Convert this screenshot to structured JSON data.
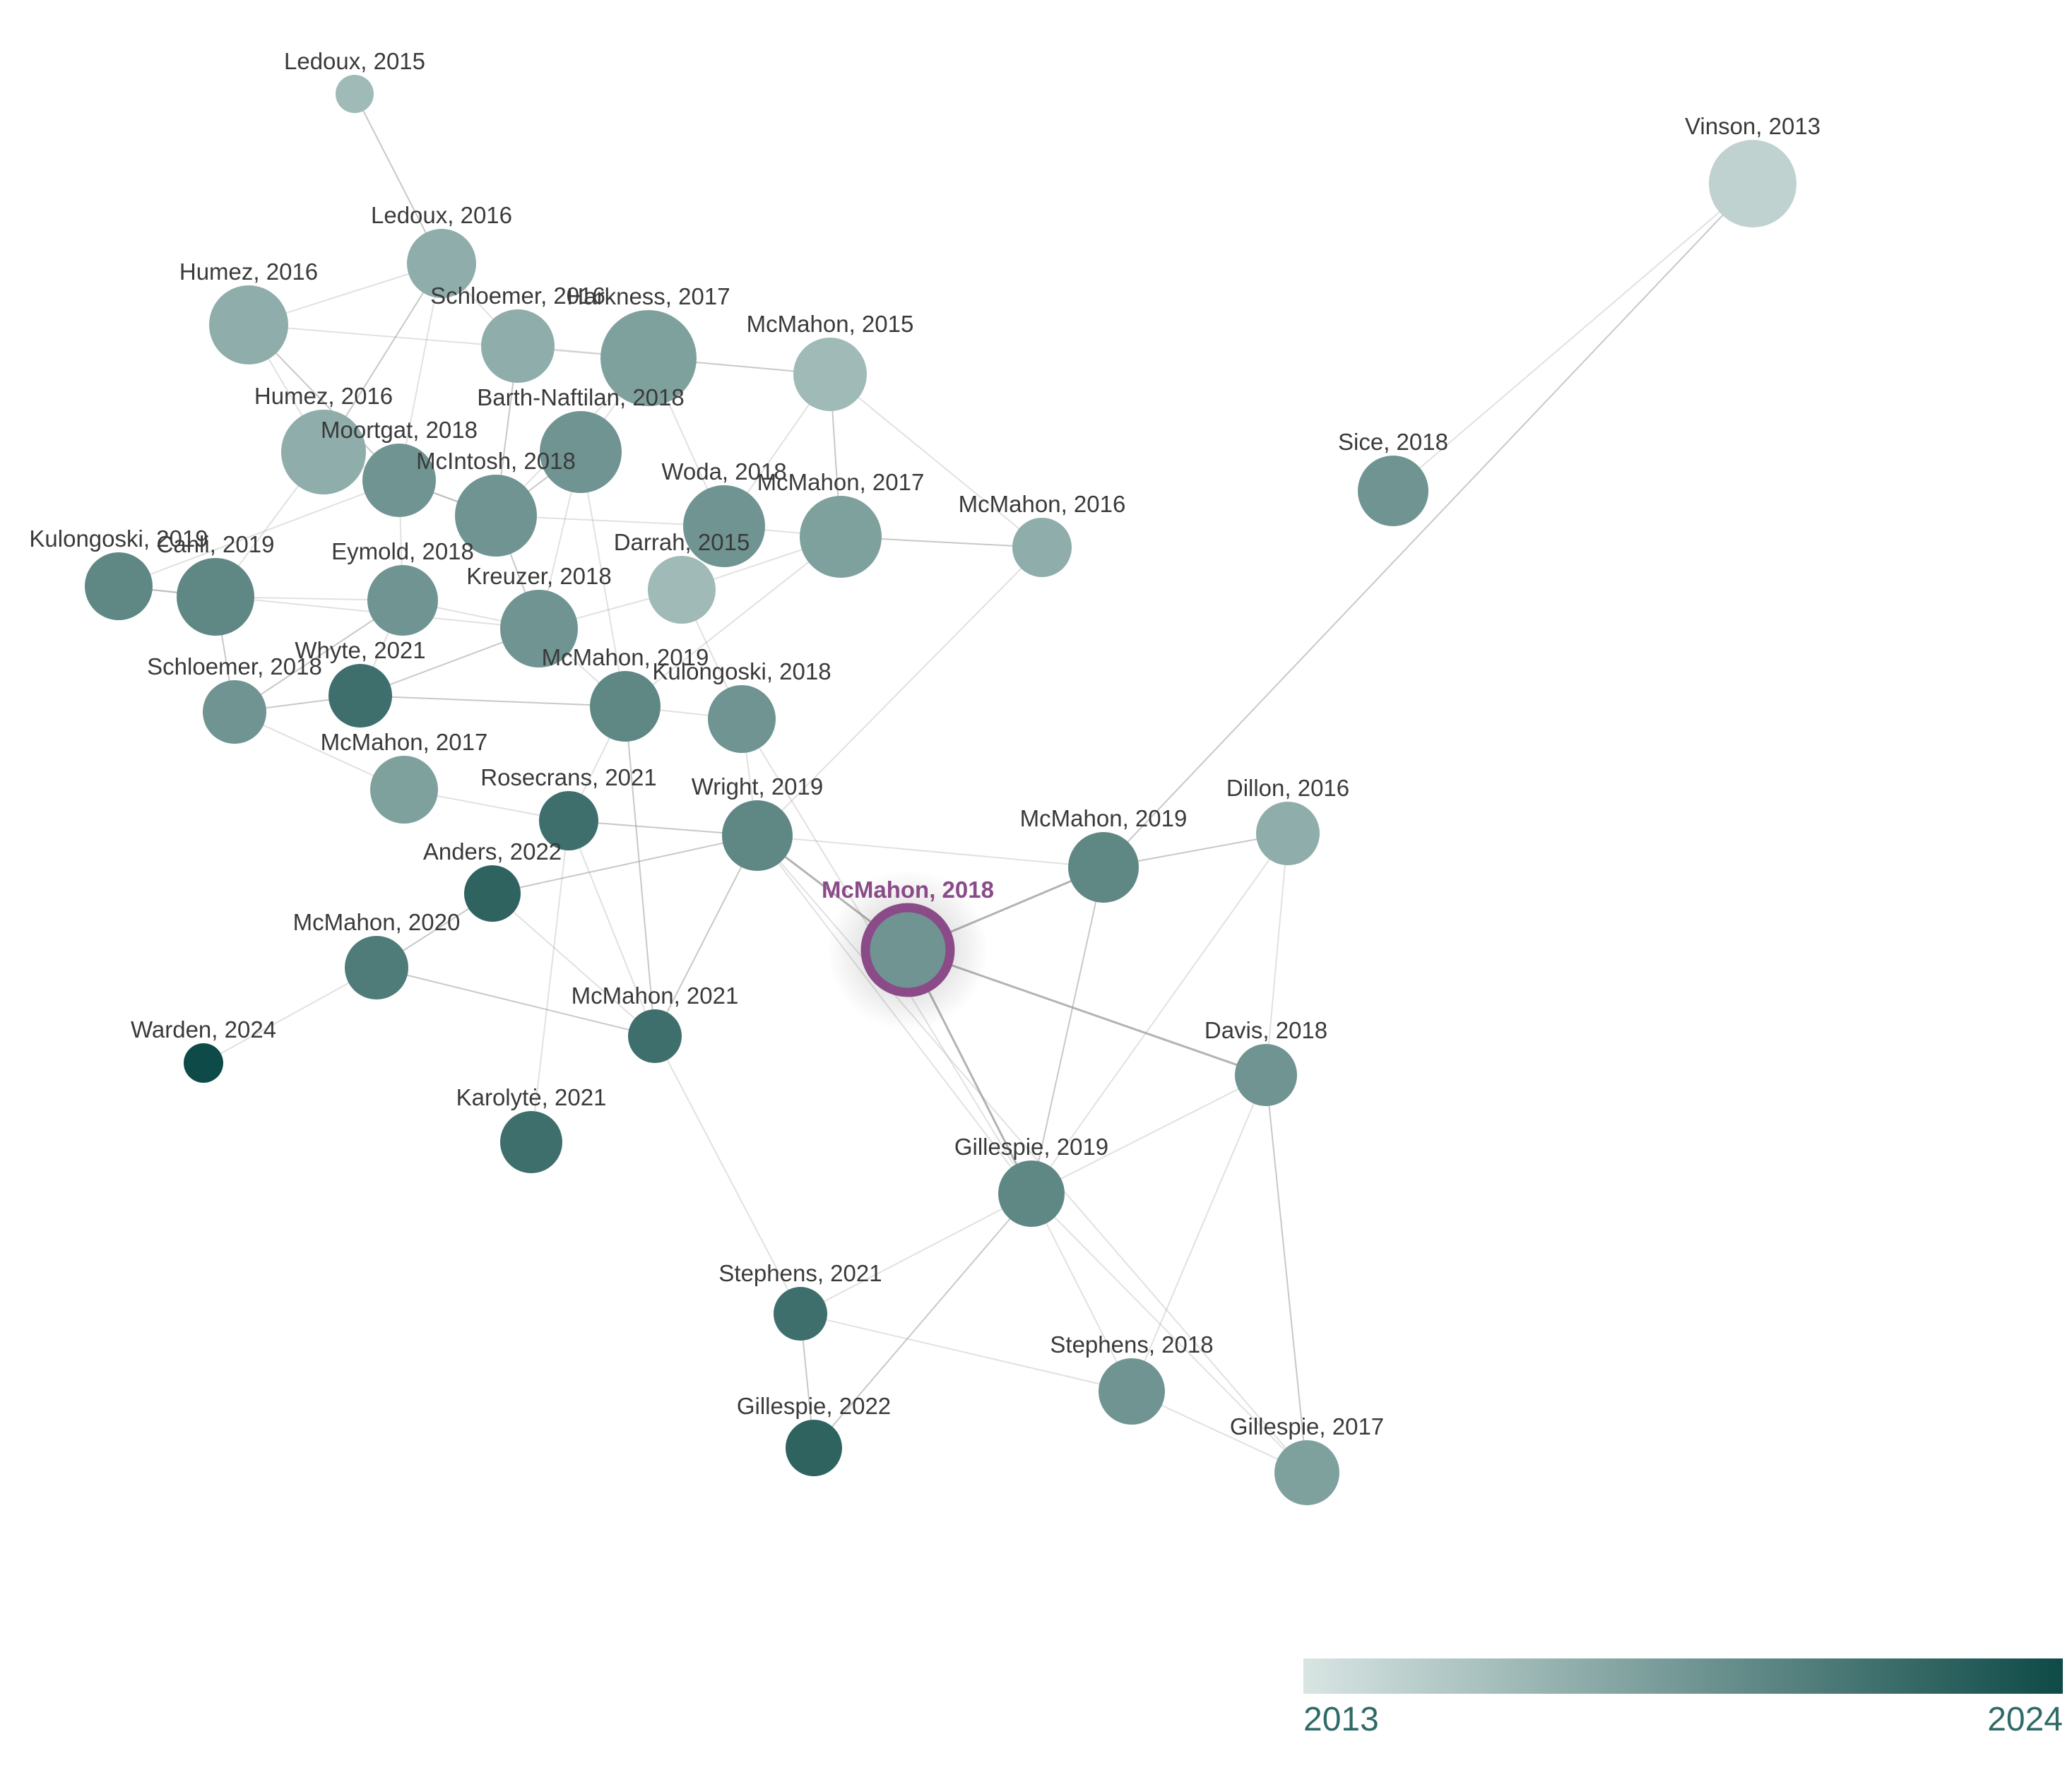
{
  "graph": {
    "selected_node": "n20",
    "year_min": 2013,
    "year_max": 2024,
    "colors": {
      "year_start": "#d8e5e3",
      "year_end": "#0e4a47",
      "selected_ring": "#8b4a88",
      "selected_label": "#8b4a88",
      "edge": "#9a9a9a",
      "label": "#3a3a3a"
    },
    "nodes": [
      {
        "id": "n1",
        "label": "Ledoux, 2015",
        "year": 2015
      },
      {
        "id": "n2",
        "label": "Ledoux, 2016",
        "year": 2016
      },
      {
        "id": "n3",
        "label": "Humez, 2016",
        "year": 2016
      },
      {
        "id": "n4",
        "label": "Schloemer, 2016",
        "year": 2016
      },
      {
        "id": "n5",
        "label": "Harkness, 2017",
        "year": 2017
      },
      {
        "id": "n6",
        "label": "McMahon, 2015",
        "year": 2015
      },
      {
        "id": "n7",
        "label": "Vinson, 2013",
        "year": 2013
      },
      {
        "id": "n8",
        "label": "Humez, 2016",
        "year": 2016
      },
      {
        "id": "n9",
        "label": "Barth-Naftilan, 2018",
        "year": 2018
      },
      {
        "id": "n10",
        "label": "Moortgat, 2018",
        "year": 2018
      },
      {
        "id": "n11",
        "label": "McIntosh, 2018",
        "year": 2018
      },
      {
        "id": "n12",
        "label": "Woda, 2018",
        "year": 2018
      },
      {
        "id": "n13",
        "label": "McMahon, 2017",
        "year": 2017
      },
      {
        "id": "n14",
        "label": "McMahon, 2016",
        "year": 2016
      },
      {
        "id": "n15",
        "label": "Sice, 2018",
        "year": 2018
      },
      {
        "id": "n16",
        "label": "Kulongoski, 2019",
        "year": 2019
      },
      {
        "id": "n17",
        "label": "Canli, 2019",
        "year": 2019
      },
      {
        "id": "n18",
        "label": "Eymold, 2018",
        "year": 2018
      },
      {
        "id": "n19",
        "label": "Darrah, 2015",
        "year": 2015
      },
      {
        "id": "n21",
        "label": "Kreuzer, 2018",
        "year": 2018
      },
      {
        "id": "n22",
        "label": "Schloemer, 2018",
        "year": 2018
      },
      {
        "id": "n23",
        "label": "Whyte, 2021",
        "year": 2021
      },
      {
        "id": "n24",
        "label": "McMahon, 2019",
        "year": 2019
      },
      {
        "id": "n25",
        "label": "Kulongoski, 2018",
        "year": 2018
      },
      {
        "id": "n26",
        "label": "McMahon, 2017",
        "year": 2017
      },
      {
        "id": "n27",
        "label": "Rosecrans, 2021",
        "year": 2021
      },
      {
        "id": "n28",
        "label": "Wright, 2019",
        "year": 2019
      },
      {
        "id": "n29",
        "label": "Dillon, 2016",
        "year": 2016
      },
      {
        "id": "n30",
        "label": "McMahon, 2019",
        "year": 2019
      },
      {
        "id": "n31",
        "label": "Anders, 2022",
        "year": 2022
      },
      {
        "id": "n20",
        "label": "McMahon, 2018",
        "year": 2018
      },
      {
        "id": "n32",
        "label": "McMahon, 2020",
        "year": 2020
      },
      {
        "id": "n33",
        "label": "McMahon, 2021",
        "year": 2021
      },
      {
        "id": "n34",
        "label": "Davis, 2018",
        "year": 2018
      },
      {
        "id": "n35",
        "label": "Warden, 2024",
        "year": 2024
      },
      {
        "id": "n36",
        "label": "Karolytė, 2021",
        "year": 2021
      },
      {
        "id": "n37",
        "label": "Gillespie, 2019",
        "year": 2019
      },
      {
        "id": "n38",
        "label": "Stephens, 2021",
        "year": 2021
      },
      {
        "id": "n39",
        "label": "Stephens, 2018",
        "year": 2018
      },
      {
        "id": "n40",
        "label": "Gillespie, 2022",
        "year": 2022
      },
      {
        "id": "n41",
        "label": "Gillespie, 2017",
        "year": 2017
      }
    ],
    "edges": [
      [
        "n1",
        "n2"
      ],
      [
        "n2",
        "n3"
      ],
      [
        "n2",
        "n4"
      ],
      [
        "n2",
        "n8"
      ],
      [
        "n2",
        "n10"
      ],
      [
        "n3",
        "n8"
      ],
      [
        "n3",
        "n10"
      ],
      [
        "n3",
        "n5"
      ],
      [
        "n4",
        "n5"
      ],
      [
        "n4",
        "n11"
      ],
      [
        "n5",
        "n9"
      ],
      [
        "n5",
        "n12"
      ],
      [
        "n5",
        "n6"
      ],
      [
        "n5",
        "n11"
      ],
      [
        "n6",
        "n14"
      ],
      [
        "n6",
        "n13"
      ],
      [
        "n6",
        "n12"
      ],
      [
        "n7",
        "n15"
      ],
      [
        "n7",
        "n30"
      ],
      [
        "n8",
        "n11"
      ],
      [
        "n8",
        "n17"
      ],
      [
        "n9",
        "n11"
      ],
      [
        "n9",
        "n21"
      ],
      [
        "n9",
        "n24"
      ],
      [
        "n10",
        "n11"
      ],
      [
        "n10",
        "n18"
      ],
      [
        "n10",
        "n16"
      ],
      [
        "n11",
        "n21"
      ],
      [
        "n11",
        "n12"
      ],
      [
        "n12",
        "n13"
      ],
      [
        "n13",
        "n14"
      ],
      [
        "n13",
        "n19"
      ],
      [
        "n13",
        "n24"
      ],
      [
        "n16",
        "n17"
      ],
      [
        "n16",
        "n21"
      ],
      [
        "n17",
        "n18"
      ],
      [
        "n17",
        "n22"
      ],
      [
        "n18",
        "n21"
      ],
      [
        "n18",
        "n23"
      ],
      [
        "n18",
        "n22"
      ],
      [
        "n19",
        "n21"
      ],
      [
        "n19",
        "n25"
      ],
      [
        "n21",
        "n23"
      ],
      [
        "n21",
        "n24"
      ],
      [
        "n22",
        "n26"
      ],
      [
        "n23",
        "n24"
      ],
      [
        "n24",
        "n25"
      ],
      [
        "n24",
        "n27"
      ],
      [
        "n24",
        "n33"
      ],
      [
        "n25",
        "n28"
      ],
      [
        "n26",
        "n27"
      ],
      [
        "n27",
        "n28"
      ],
      [
        "n27",
        "n36"
      ],
      [
        "n27",
        "n33"
      ],
      [
        "n28",
        "n31"
      ],
      [
        "n28",
        "n30"
      ],
      [
        "n28",
        "n20"
      ],
      [
        "n28",
        "n33"
      ],
      [
        "n28",
        "n37"
      ],
      [
        "n28",
        "n41"
      ],
      [
        "n29",
        "n30"
      ],
      [
        "n29",
        "n34"
      ],
      [
        "n29",
        "n37"
      ],
      [
        "n20",
        "n30"
      ],
      [
        "n20",
        "n34"
      ],
      [
        "n20",
        "n37"
      ],
      [
        "n31",
        "n32"
      ],
      [
        "n31",
        "n33"
      ],
      [
        "n32",
        "n35"
      ],
      [
        "n32",
        "n33"
      ],
      [
        "n34",
        "n37"
      ],
      [
        "n34",
        "n39"
      ],
      [
        "n34",
        "n41"
      ],
      [
        "n37",
        "n38"
      ],
      [
        "n37",
        "n39"
      ],
      [
        "n37",
        "n40"
      ],
      [
        "n37",
        "n41"
      ],
      [
        "n38",
        "n39"
      ],
      [
        "n38",
        "n40"
      ],
      [
        "n39",
        "n41"
      ],
      [
        "n33",
        "n38"
      ],
      [
        "n30",
        "n37"
      ],
      [
        "n14",
        "n28"
      ],
      [
        "n25",
        "n37"
      ],
      [
        "n22",
        "n23"
      ]
    ]
  },
  "legend": {
    "min_label": "2013",
    "max_label": "2024"
  }
}
